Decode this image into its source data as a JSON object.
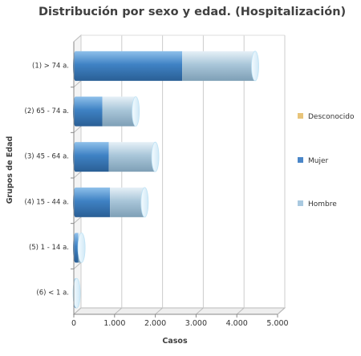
{
  "chart_data": {
    "type": "bar",
    "orientation": "horizontal",
    "stacked": true,
    "three_d": true,
    "title": "Distribución por sexo y edad. (Hospitalización)",
    "xlabel": "Casos",
    "ylabel": "Grupos de Edad",
    "xlim": [
      0,
      5000
    ],
    "xticks": [
      0,
      1000,
      2000,
      3000,
      4000,
      5000
    ],
    "xtick_labels": [
      "0",
      "1.000",
      "2.000",
      "3.000",
      "4.000",
      "5.000"
    ],
    "grid": true,
    "legend_position": "right",
    "categories": [
      "(1) > 74 a.",
      "(2) 65 - 74 a.",
      "(3) 45 - 64 a.",
      "(4) 15 - 44 a.",
      "(5) 1 - 14 a.",
      "(6) < 1 a."
    ],
    "series": [
      {
        "name": "Mujer",
        "color": "#4a86c8",
        "values": [
          2620,
          660,
          820,
          850,
          70,
          10
        ]
      },
      {
        "name": "Hombre",
        "color": "#a9c9e0",
        "values": [
          1790,
          820,
          1140,
          850,
          80,
          20
        ]
      },
      {
        "name": "Desconocido",
        "color": "#e8c47a",
        "values": [
          0,
          0,
          0,
          0,
          0,
          0
        ]
      }
    ],
    "legend_order": [
      "Desconocido",
      "Mujer",
      "Hombre"
    ]
  }
}
